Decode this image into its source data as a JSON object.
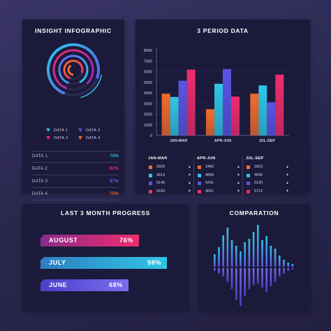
{
  "colors": {
    "orange": "#f26d2b",
    "cyan": "#2fc6e6",
    "purple": "#5b54e6",
    "pink": "#ef2d6e"
  },
  "insight": {
    "title": "INSIGHT INFOGRAPHIC",
    "legend": [
      {
        "label": "DATA 1",
        "color": "#2fc6e6"
      },
      {
        "label": "DATA 3",
        "color": "#5b54e6"
      },
      {
        "label": "DATA 2",
        "color": "#ef2d6e"
      },
      {
        "label": "DATA 4",
        "color": "#f26d2b"
      }
    ],
    "rows": [
      {
        "label": "DATA 1",
        "value": "75%",
        "color": "#2fc6e6"
      },
      {
        "label": "DATA 2",
        "value": "82%",
        "color": "#ef2d6e"
      },
      {
        "label": "DATA 3",
        "value": "87%",
        "color": "#6a63f0"
      },
      {
        "label": "DATA 4",
        "value": "75%",
        "color": "#f26d2b"
      }
    ]
  },
  "period": {
    "title": "3 PERIOD DATA",
    "columns": [
      "JAN-MAR",
      "APR-JUN",
      "JUL-SEP"
    ],
    "table": [
      {
        "color": "#f26d2b",
        "values": [
          "3920",
          "2465",
          "3923"
        ]
      },
      {
        "color": "#2fc6e6",
        "values": [
          "3613",
          "4856",
          "4695"
        ]
      },
      {
        "color": "#5b54e6",
        "values": [
          "5146",
          "6241",
          "3120"
        ]
      },
      {
        "color": "#ef2d6e",
        "values": [
          "6183",
          "3651",
          "5712"
        ]
      }
    ],
    "arrow": "▲"
  },
  "progress": {
    "title": "LAST 3 MONTH PROGRESS",
    "bars": [
      {
        "label": "AUGUST",
        "value_text": "76%",
        "value": 76,
        "from": "#ef2d6e",
        "to": "#8a2a8c"
      },
      {
        "label": "JULY",
        "value_text": "98%",
        "value": 98,
        "from": "#2fc6e6",
        "to": "#2f7ec0"
      },
      {
        "label": "JUNE",
        "value_text": "68%",
        "value": 68,
        "from": "#7a6df0",
        "to": "#4a3fc8"
      }
    ]
  },
  "comparation": {
    "title": "COMPARATION",
    "up": [
      18,
      28,
      45,
      56,
      38,
      30,
      22,
      35,
      40,
      50,
      60,
      38,
      44,
      30,
      26,
      16,
      10,
      6,
      4
    ],
    "down": [
      4,
      8,
      12,
      20,
      30,
      46,
      56,
      40,
      30,
      24,
      22,
      28,
      34,
      26,
      20,
      12,
      8,
      4,
      2
    ]
  },
  "chart_data": [
    {
      "type": "radial",
      "series": [
        {
          "name": "DATA 1",
          "value": 75
        },
        {
          "name": "DATA 2",
          "value": 82
        },
        {
          "name": "DATA 3",
          "value": 87
        },
        {
          "name": "DATA 4",
          "value": 75
        }
      ]
    },
    {
      "type": "bar",
      "title": "3 PERIOD DATA",
      "categories": [
        "JAN-MAR",
        "APR-JUN",
        "JUL-SEP"
      ],
      "series": [
        {
          "values": [
            3920,
            2465,
            3923
          ]
        },
        {
          "values": [
            3613,
            4856,
            4695
          ]
        },
        {
          "values": [
            5146,
            6241,
            3120
          ]
        },
        {
          "values": [
            6183,
            3651,
            5712
          ]
        }
      ],
      "ylim": [
        0,
        8000
      ],
      "yticks": [
        "8000",
        "7000",
        "6000",
        "5000",
        "4000",
        "3000",
        "2000",
        "1000",
        "0"
      ],
      "grid": true
    },
    {
      "type": "bar",
      "title": "LAST 3 MONTH PROGRESS",
      "categories": [
        "AUGUST",
        "JULY",
        "JUNE"
      ],
      "values": [
        76,
        98,
        68
      ]
    }
  ]
}
